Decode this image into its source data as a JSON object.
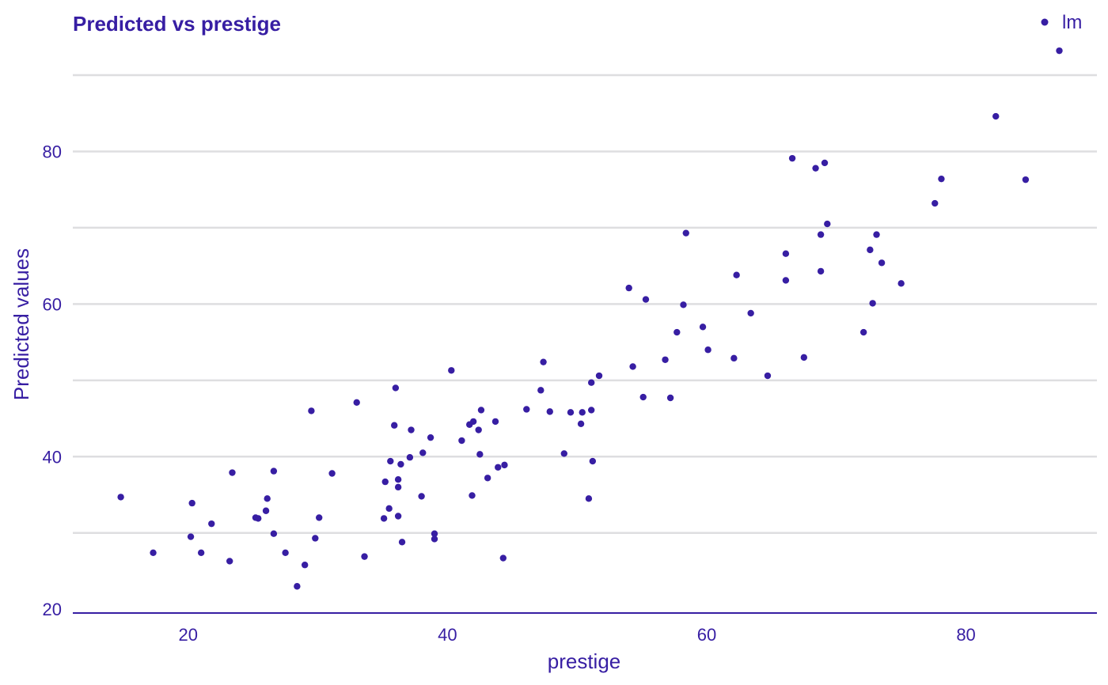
{
  "chart_data": {
    "type": "scatter",
    "title": "Predicted vs prestige",
    "xlabel": "prestige",
    "ylabel": "Predicted values",
    "xlim": [
      11.1,
      90.1
    ],
    "ylim": [
      19.5,
      92.8
    ],
    "x_ticks": [
      20,
      40,
      60,
      80
    ],
    "y_ticks": [
      20,
      40,
      60,
      80
    ],
    "y_minor_grid": [
      30,
      50,
      70,
      90
    ],
    "grid": true,
    "legend_position": "top-right",
    "colors": {
      "point": "#371ea3",
      "text": "#371ea3",
      "grid": "#dedee0"
    },
    "series": [
      {
        "name": "lm",
        "points": [
          [
            14.8,
            34.7
          ],
          [
            17.3,
            27.4
          ],
          [
            20.2,
            29.5
          ],
          [
            20.3,
            33.9
          ],
          [
            21.0,
            27.4
          ],
          [
            21.8,
            31.2
          ],
          [
            23.2,
            26.3
          ],
          [
            23.4,
            37.9
          ],
          [
            25.2,
            32.0
          ],
          [
            25.4,
            31.9
          ],
          [
            26.0,
            32.9
          ],
          [
            26.1,
            34.5
          ],
          [
            26.6,
            38.1
          ],
          [
            26.6,
            29.9
          ],
          [
            27.5,
            27.4
          ],
          [
            28.4,
            23.0
          ],
          [
            29.0,
            25.8
          ],
          [
            29.5,
            46.0
          ],
          [
            29.8,
            29.3
          ],
          [
            30.1,
            32.0
          ],
          [
            31.1,
            37.8
          ],
          [
            33.0,
            47.1
          ],
          [
            33.6,
            26.9
          ],
          [
            35.1,
            31.9
          ],
          [
            35.2,
            36.7
          ],
          [
            35.5,
            33.2
          ],
          [
            35.6,
            39.4
          ],
          [
            35.9,
            44.1
          ],
          [
            36.0,
            49.0
          ],
          [
            36.2,
            32.2
          ],
          [
            36.2,
            37.0
          ],
          [
            36.2,
            36.0
          ],
          [
            36.4,
            39.0
          ],
          [
            36.5,
            28.8
          ],
          [
            37.1,
            39.9
          ],
          [
            37.2,
            43.5
          ],
          [
            38.0,
            34.8
          ],
          [
            38.1,
            40.5
          ],
          [
            38.7,
            42.5
          ],
          [
            39.0,
            29.9
          ],
          [
            39.0,
            29.2
          ],
          [
            40.3,
            51.3
          ],
          [
            41.1,
            42.1
          ],
          [
            41.7,
            44.2
          ],
          [
            41.9,
            34.9
          ],
          [
            42.0,
            44.6
          ],
          [
            42.4,
            43.5
          ],
          [
            42.5,
            40.3
          ],
          [
            42.6,
            46.1
          ],
          [
            43.1,
            37.2
          ],
          [
            43.7,
            44.6
          ],
          [
            43.9,
            38.6
          ],
          [
            44.3,
            26.7
          ],
          [
            44.4,
            38.9
          ],
          [
            46.1,
            46.2
          ],
          [
            47.2,
            48.7
          ],
          [
            47.4,
            52.4
          ],
          [
            47.9,
            45.9
          ],
          [
            49.0,
            40.4
          ],
          [
            49.5,
            45.8
          ],
          [
            50.3,
            44.3
          ],
          [
            50.4,
            45.8
          ],
          [
            50.9,
            34.5
          ],
          [
            51.1,
            46.1
          ],
          [
            51.1,
            49.7
          ],
          [
            51.2,
            39.4
          ],
          [
            51.7,
            50.6
          ],
          [
            54.0,
            62.1
          ],
          [
            54.3,
            51.8
          ],
          [
            55.1,
            47.8
          ],
          [
            55.3,
            60.6
          ],
          [
            56.8,
            52.7
          ],
          [
            57.2,
            47.7
          ],
          [
            57.7,
            56.3
          ],
          [
            58.2,
            59.9
          ],
          [
            58.4,
            69.3
          ],
          [
            59.7,
            57.0
          ],
          [
            60.1,
            54.0
          ],
          [
            62.1,
            52.9
          ],
          [
            62.3,
            63.8
          ],
          [
            63.4,
            58.8
          ],
          [
            64.7,
            50.6
          ],
          [
            66.1,
            66.6
          ],
          [
            66.1,
            63.1
          ],
          [
            66.6,
            79.1
          ],
          [
            67.5,
            53.0
          ],
          [
            68.4,
            77.8
          ],
          [
            68.8,
            69.1
          ],
          [
            68.8,
            64.3
          ],
          [
            69.1,
            78.5
          ],
          [
            69.3,
            70.5
          ],
          [
            72.1,
            56.3
          ],
          [
            72.6,
            67.1
          ],
          [
            72.8,
            60.1
          ],
          [
            73.1,
            69.1
          ],
          [
            73.5,
            65.4
          ],
          [
            75.0,
            62.7
          ],
          [
            77.6,
            73.2
          ],
          [
            78.1,
            76.4
          ],
          [
            82.3,
            84.6
          ],
          [
            84.6,
            76.3
          ],
          [
            87.2,
            93.2
          ]
        ]
      }
    ]
  }
}
